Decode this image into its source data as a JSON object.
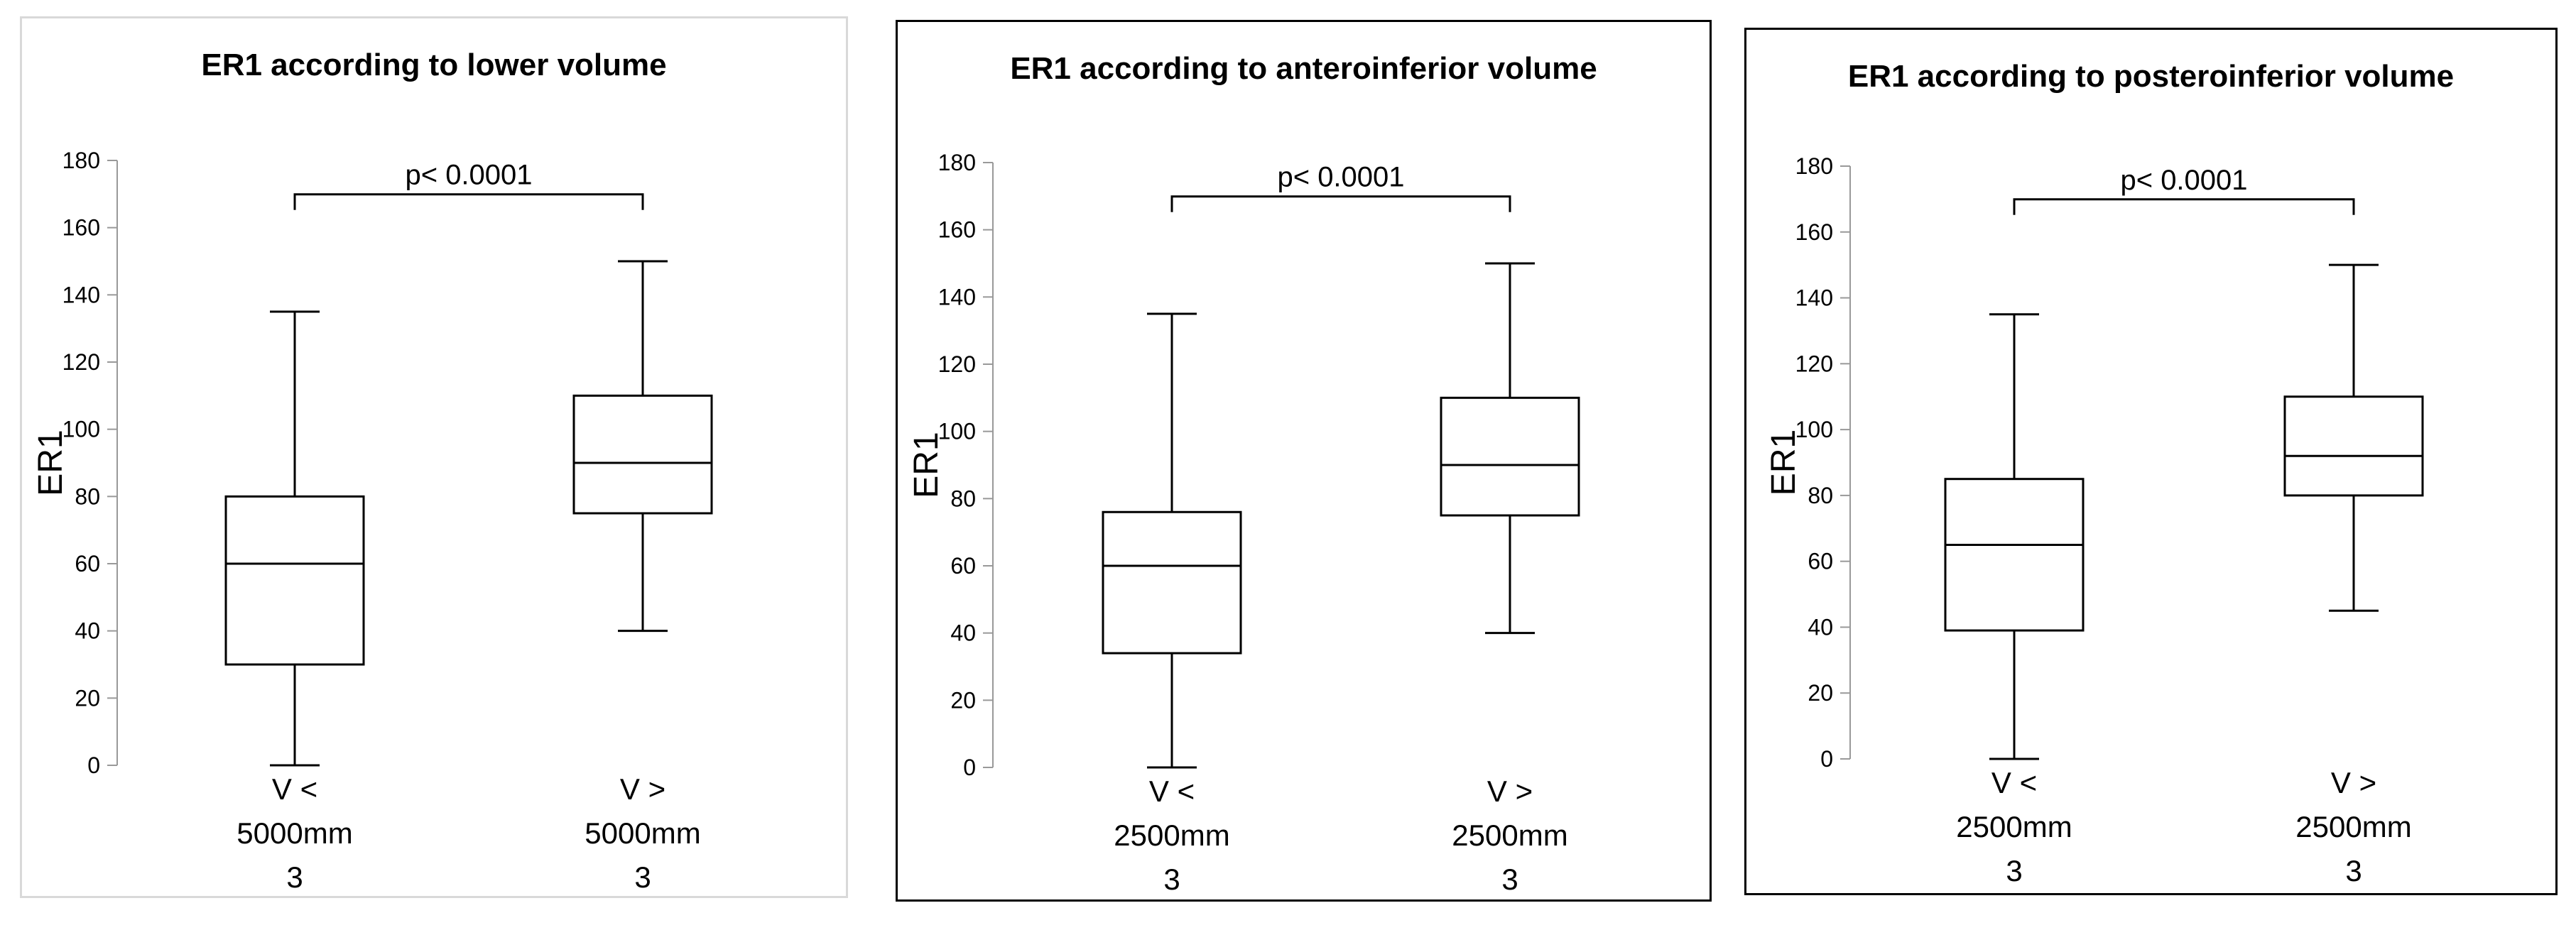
{
  "chart_data": [
    {
      "type": "box",
      "title": "ER1 according to lower volume",
      "y_label": "ER1",
      "annotation": "p< 0.0001",
      "categories": [
        [
          "V <",
          "5000mm",
          "3"
        ],
        [
          "V >",
          "5000mm",
          "3"
        ]
      ],
      "boxes": [
        {
          "min": 0,
          "q1": 30,
          "median": 60,
          "q3": 80,
          "max": 135
        },
        {
          "min": 40,
          "q1": 75,
          "median": 90,
          "q3": 110,
          "max": 150
        }
      ],
      "ylim": [
        0,
        180
      ],
      "yticks": [
        0,
        20,
        40,
        60,
        80,
        100,
        120,
        140,
        160,
        180
      ],
      "color": "#000000"
    },
    {
      "type": "box",
      "title": "ER1 according to anteroinferior volume",
      "y_label": "ER1",
      "annotation": "p< 0.0001",
      "categories": [
        [
          "V <",
          "2500mm",
          "3"
        ],
        [
          "V >",
          "2500mm",
          "3"
        ]
      ],
      "boxes": [
        {
          "min": 0,
          "q1": 34,
          "median": 60,
          "q3": 76,
          "max": 135
        },
        {
          "min": 40,
          "q1": 75,
          "median": 90,
          "q3": 110,
          "max": 150
        }
      ],
      "ylim": [
        0,
        180
      ],
      "yticks": [
        0,
        20,
        40,
        60,
        80,
        100,
        120,
        140,
        160,
        180
      ],
      "color": "#000000"
    },
    {
      "type": "box",
      "title": "ER1 according to posteroinferior volume",
      "y_label": "ER1",
      "annotation": "p< 0.0001",
      "categories": [
        [
          "V <",
          "2500mm",
          "3"
        ],
        [
          "V >",
          "2500mm",
          "3"
        ]
      ],
      "boxes": [
        {
          "min": 0,
          "q1": 39,
          "median": 65,
          "q3": 85,
          "max": 135
        },
        {
          "min": 45,
          "q1": 80,
          "median": 92,
          "q3": 110,
          "max": 150
        }
      ],
      "ylim": [
        0,
        180
      ],
      "yticks": [
        0,
        20,
        40,
        60,
        80,
        100,
        120,
        140,
        160,
        180
      ],
      "color": "#000000"
    }
  ]
}
